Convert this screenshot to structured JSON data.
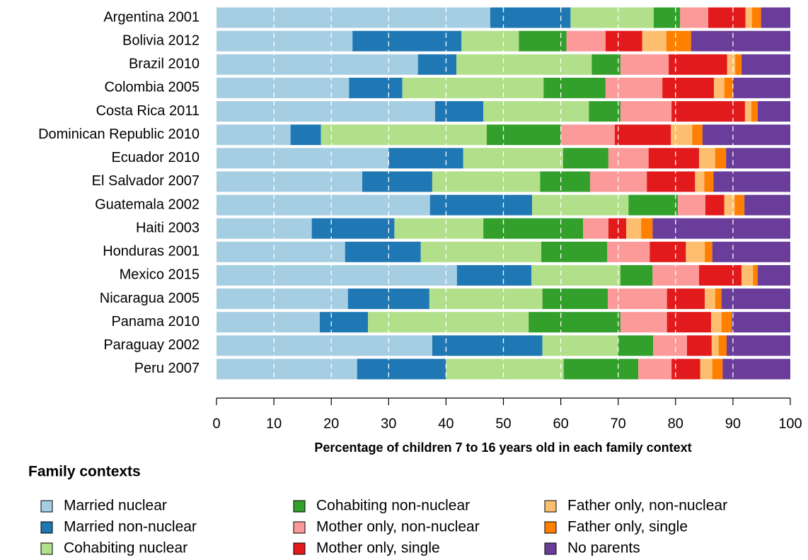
{
  "chart_data": {
    "type": "stacked-bar",
    "orientation": "horizontal",
    "x_label": "Percentage of children 7 to 16 years old in each family context",
    "legend_title": "Family contexts",
    "categories": [
      "Argentina 2001",
      "Bolivia 2012",
      "Brazil 2010",
      "Colombia 2005",
      "Costa Rica 2011",
      "Dominican Republic 2010",
      "Ecuador 2010",
      "El Salvador 2007",
      "Guatemala 2002",
      "Haiti 2003",
      "Honduras 2001",
      "Mexico 2015",
      "Nicaragua 2005",
      "Panama 2010",
      "Paraguay 2002",
      "Peru 2007"
    ],
    "series": [
      {
        "name": "Married nuclear",
        "color": "#a6cee3",
        "values": [
          47.7,
          23.7,
          35.1,
          23.1,
          38.1,
          12.9,
          30.0,
          25.4,
          37.2,
          16.6,
          22.4,
          41.9,
          22.9,
          18.0,
          37.6,
          24.5
        ]
      },
      {
        "name": "Married non-nuclear",
        "color": "#1f78b4",
        "values": [
          14.0,
          19.0,
          6.7,
          9.3,
          8.4,
          5.3,
          13.0,
          12.2,
          17.8,
          14.4,
          13.2,
          13.0,
          14.2,
          8.4,
          19.2,
          15.5
        ]
      },
      {
        "name": "Cohabiting nuclear",
        "color": "#b2df8a",
        "values": [
          14.5,
          10.0,
          23.6,
          24.6,
          18.4,
          28.9,
          17.4,
          18.8,
          16.8,
          15.5,
          21.0,
          15.5,
          19.7,
          28.0,
          13.2,
          20.5
        ]
      },
      {
        "name": "Cohabiting non-nuclear",
        "color": "#33a02c",
        "values": [
          4.6,
          8.3,
          5.0,
          10.8,
          5.5,
          12.9,
          7.9,
          8.7,
          8.6,
          17.4,
          11.5,
          5.6,
          11.4,
          16.0,
          6.1,
          13.0
        ]
      },
      {
        "name": "Mother only, non-nuclear",
        "color": "#fb9a99",
        "values": [
          4.9,
          6.8,
          8.4,
          9.9,
          8.9,
          9.4,
          7.0,
          9.9,
          4.8,
          4.4,
          7.4,
          8.1,
          10.3,
          8.1,
          5.9,
          5.8
        ]
      },
      {
        "name": "Mother only, single",
        "color": "#e31a1c",
        "values": [
          6.5,
          6.4,
          10.2,
          9.0,
          12.8,
          9.8,
          8.8,
          8.4,
          3.3,
          3.1,
          6.3,
          7.4,
          6.6,
          7.7,
          4.3,
          5.0
        ]
      },
      {
        "name": "Father only, non-nuclear",
        "color": "#fdbf6f",
        "values": [
          1.1,
          4.2,
          1.4,
          1.8,
          1.1,
          3.7,
          2.8,
          1.6,
          1.8,
          2.6,
          3.3,
          2.0,
          1.8,
          1.8,
          1.2,
          2.1
        ]
      },
      {
        "name": "Father only, single",
        "color": "#ff7f00",
        "values": [
          1.6,
          4.3,
          1.1,
          1.5,
          1.1,
          1.8,
          1.9,
          1.6,
          1.7,
          2.0,
          1.3,
          0.8,
          1.1,
          1.8,
          1.4,
          1.8
        ]
      },
      {
        "name": "No parents",
        "color": "#6a3d9a",
        "values": [
          5.1,
          17.3,
          8.5,
          10.0,
          5.7,
          15.3,
          11.2,
          13.4,
          8.0,
          24.0,
          13.6,
          5.7,
          12.0,
          10.2,
          11.1,
          11.8
        ]
      }
    ],
    "xlim": [
      0,
      100
    ],
    "xticks": [
      0,
      10,
      20,
      30,
      40,
      50,
      60,
      70,
      80,
      90,
      100
    ],
    "grid": true
  }
}
